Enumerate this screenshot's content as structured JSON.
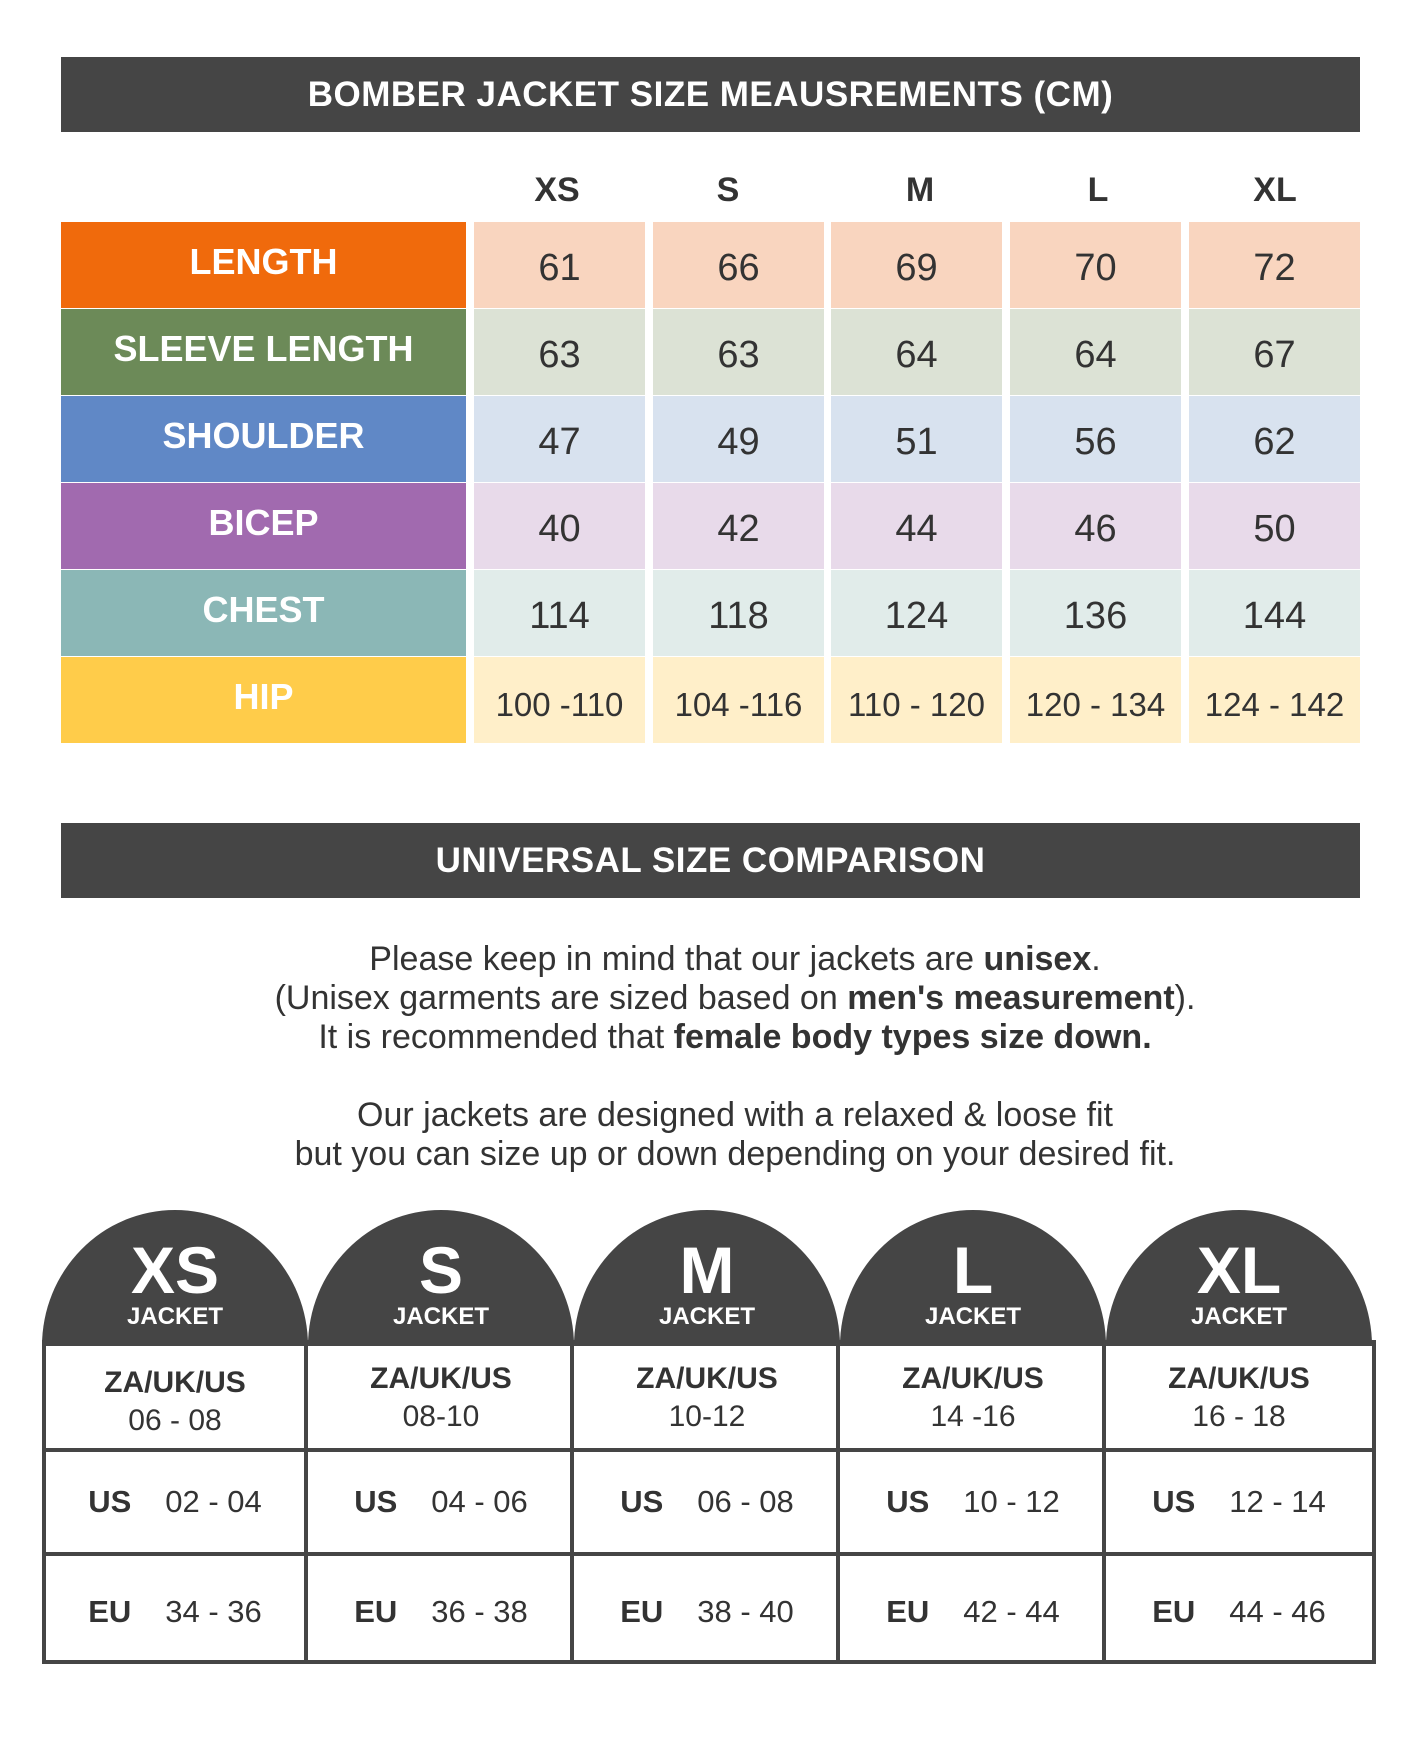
{
  "measurements": {
    "title": "BOMBER JACKET SIZE MEAUSREMENTS (CM)",
    "sizes": [
      "XS",
      "S",
      "M",
      "L",
      "XL"
    ],
    "rows": [
      {
        "label": "LENGTH",
        "color": "#F06A0C",
        "cell_color": "#F9D5BF",
        "values": [
          "61",
          "66",
          "69",
          "70",
          "72"
        ]
      },
      {
        "label": "SLEEVE LENGTH",
        "color": "#6C8A58",
        "cell_color": "#DCE2D5",
        "values": [
          "63",
          "63",
          "64",
          "64",
          "67"
        ]
      },
      {
        "label": "SHOULDER",
        "color": "#6088C6",
        "cell_color": "#D8E2EF",
        "values": [
          "47",
          "49",
          "51",
          "56",
          "62"
        ]
      },
      {
        "label": "BICEP",
        "color": "#A16AAF",
        "cell_color": "#E8DAEA",
        "values": [
          "40",
          "42",
          "44",
          "46",
          "50"
        ]
      },
      {
        "label": "CHEST",
        "color": "#8BB7B6",
        "cell_color": "#E1ECEA",
        "values": [
          "114",
          "118",
          "124",
          "136",
          "144"
        ]
      },
      {
        "label": "HIP",
        "color": "#FFCC4A",
        "cell_color": "#FFEFC9",
        "values": [
          "100 -110",
          "104 -116",
          "110 - 120",
          "120 - 134",
          "124 - 142"
        ]
      }
    ]
  },
  "comparison": {
    "title": "UNIVERSAL SIZE COMPARISON",
    "note": {
      "line1_a": "Please keep in mind that our jackets are ",
      "line1_b": "unisex",
      "line1_c": ".",
      "line2_a": "(Unisex garments are sized based on ",
      "line2_b": "men's measurement",
      "line2_c": ").",
      "line3_a": "It is recommended that ",
      "line3_b": "female body types size down.",
      "line4": "Our jackets are designed with a relaxed & loose fit",
      "line5": "but you can size up or down depending on your desired fit."
    },
    "jacket_label": "JACKET",
    "za_label": "ZA/UK/US",
    "us_label": "US",
    "eu_label": "EU",
    "sizes": [
      {
        "size": "XS",
        "za": "06 - 08",
        "us": "02 - 04",
        "eu": "34 - 36"
      },
      {
        "size": "S",
        "za": "08-10",
        "us": "04 - 06",
        "eu": "36 - 38"
      },
      {
        "size": "M",
        "za": "10-12",
        "us": "06 - 08",
        "eu": "38 - 40"
      },
      {
        "size": "L",
        "za": "14 -16",
        "us": "10 - 12",
        "eu": "42 - 44"
      },
      {
        "size": "XL",
        "za": "16 - 18",
        "us": "12 - 14",
        "eu": "44 - 46"
      }
    ]
  }
}
